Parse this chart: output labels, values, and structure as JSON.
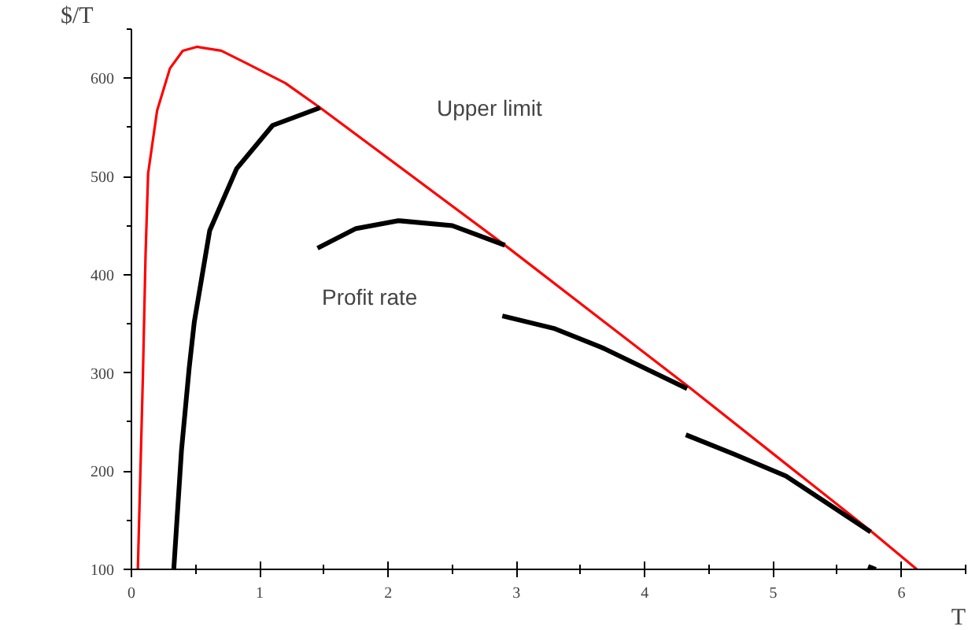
{
  "chart_data": {
    "type": "line",
    "xlabel": "T",
    "ylabel": "$/T",
    "xlim": [
      0,
      6.5
    ],
    "ylim": [
      100,
      650
    ],
    "xticks": [
      0,
      1,
      2,
      3,
      4,
      5,
      6
    ],
    "yticks": [
      100,
      200,
      300,
      400,
      500,
      600
    ],
    "grid": false,
    "line_style": "solid",
    "marker": "none",
    "annotations": [
      "Upper limit",
      "Profit rate"
    ],
    "series": [
      {
        "color": "#ff0000",
        "x": [
          0.05,
          0.07,
          0.09,
          0.11,
          0.13,
          0.2,
          0.3,
          0.4,
          0.51,
          0.7,
          0.9,
          1.2,
          1.47,
          2.91,
          4.35,
          5.77,
          6.12
        ],
        "values": [
          100,
          200,
          300,
          420,
          503,
          567,
          610,
          628,
          632,
          628,
          615,
          595,
          570,
          430,
          285,
          138,
          100
        ]
      },
      {
        "color": "#000000",
        "x": [
          0.33,
          0.39,
          0.45,
          0.49,
          0.61,
          0.82,
          1.1,
          1.47
        ],
        "values": [
          100,
          221,
          305,
          352,
          445,
          508,
          552,
          570
        ]
      },
      {
        "color": "#000000",
        "x": [
          1.45,
          1.75,
          2.08,
          2.5,
          2.91
        ],
        "values": [
          427,
          447,
          455,
          450,
          430
        ]
      },
      {
        "color": "#000000",
        "x": [
          2.89,
          3.3,
          3.68,
          4.33
        ],
        "values": [
          358,
          345,
          325,
          284
        ]
      },
      {
        "color": "#000000",
        "x": [
          4.32,
          4.7,
          5.1,
          5.76
        ],
        "values": [
          237,
          217,
          195,
          138
        ]
      },
      {
        "color": "#000000",
        "x": [
          5.74,
          5.8
        ],
        "values": [
          103,
          100
        ]
      }
    ]
  }
}
